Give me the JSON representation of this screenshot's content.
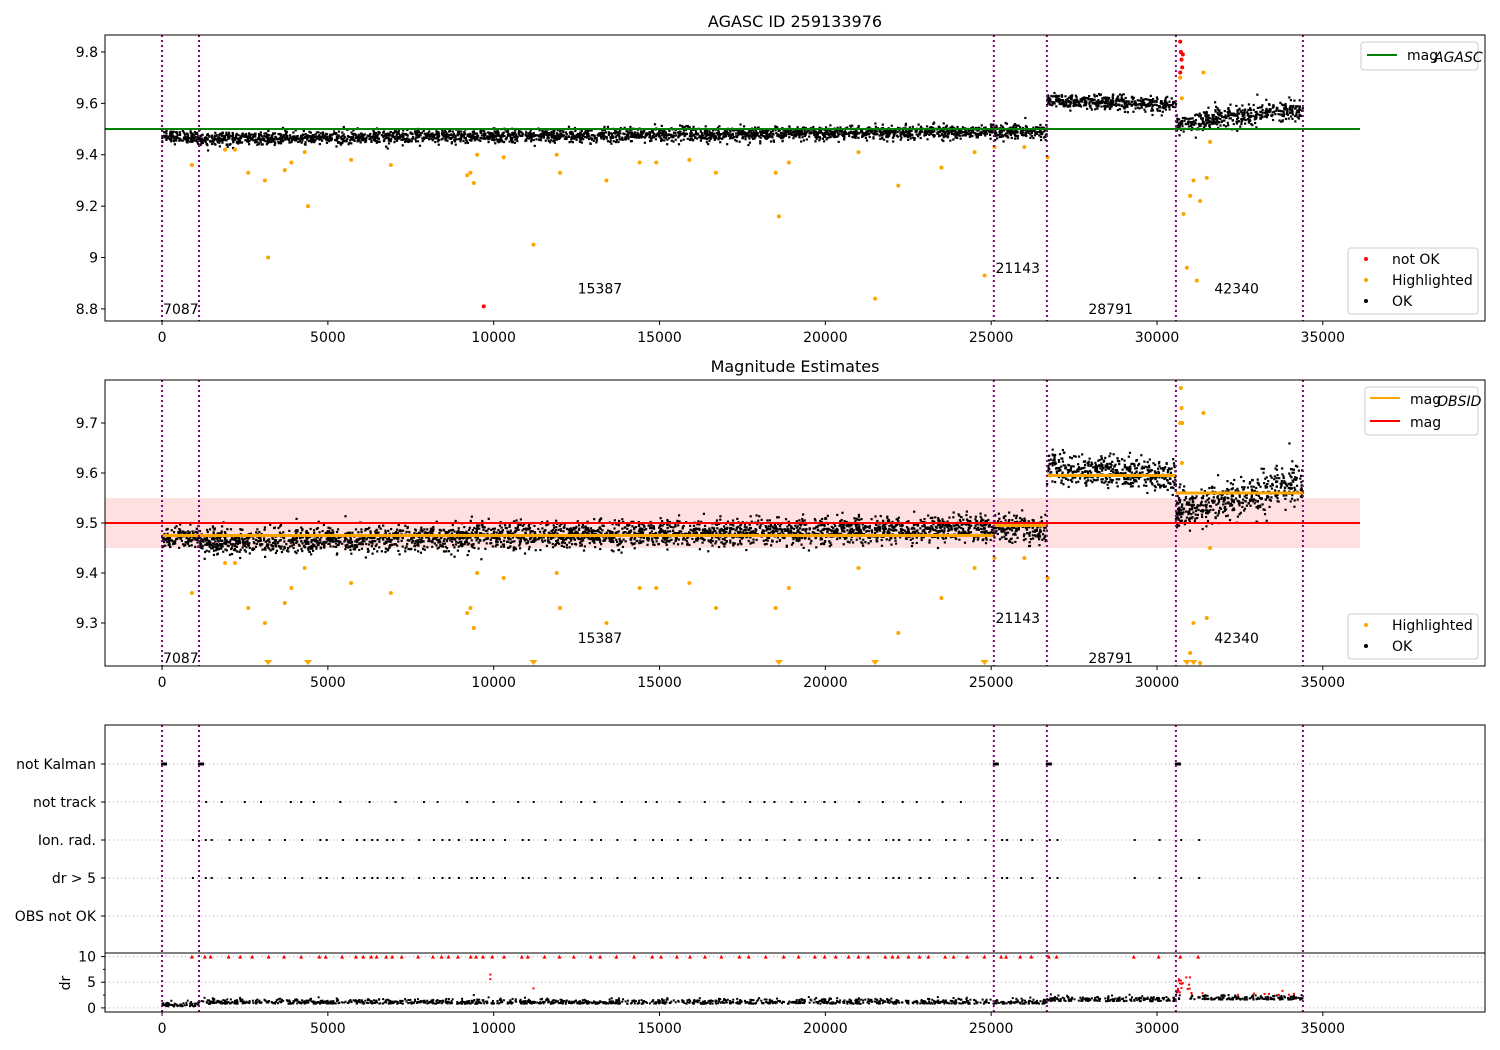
{
  "chart_data": [
    {
      "type": "scatter",
      "title": "AGASC ID 259133976",
      "xlim": [
        -1720,
        39890
      ],
      "ylim": [
        8.753,
        9.866
      ],
      "xticks": [
        0,
        5000,
        10000,
        15000,
        20000,
        25000,
        30000,
        35000
      ],
      "yticks": [
        8.8,
        9.0,
        9.2,
        9.4,
        9.6,
        9.8
      ],
      "hline": {
        "label": "mag_AGASC",
        "value": 9.5,
        "x_range": [
          -1720,
          36120
        ],
        "color": "#008000"
      },
      "legend_lines": [
        {
          "label": "mag",
          "sub": "AGASC",
          "color": "#008000"
        }
      ],
      "legend_points": [
        {
          "label": "not OK",
          "color": "#ff0000"
        },
        {
          "label": "Highlighted",
          "color": "#ffa500"
        },
        {
          "label": "OK",
          "color": "#000000"
        }
      ],
      "highlighted": [
        [
          900,
          9.36
        ],
        [
          1900,
          9.42
        ],
        [
          2200,
          9.42
        ],
        [
          2600,
          9.33
        ],
        [
          3100,
          9.3
        ],
        [
          3200,
          9.0
        ],
        [
          3700,
          9.34
        ],
        [
          3900,
          9.37
        ],
        [
          4400,
          9.2
        ],
        [
          4300,
          9.41
        ],
        [
          5700,
          9.38
        ],
        [
          6900,
          9.36
        ],
        [
          9200,
          9.32
        ],
        [
          9300,
          9.33
        ],
        [
          9400,
          9.29
        ],
        [
          9500,
          9.4
        ],
        [
          10300,
          9.39
        ],
        [
          11200,
          9.05
        ],
        [
          12000,
          9.33
        ],
        [
          11900,
          9.4
        ],
        [
          13400,
          9.3
        ],
        [
          14400,
          9.37
        ],
        [
          14900,
          9.37
        ],
        [
          15900,
          9.38
        ],
        [
          16700,
          9.33
        ],
        [
          18500,
          9.33
        ],
        [
          18600,
          9.16
        ],
        [
          18900,
          9.37
        ],
        [
          21000,
          9.41
        ],
        [
          21500,
          8.84
        ],
        [
          22200,
          9.28
        ],
        [
          23500,
          9.35
        ],
        [
          24500,
          9.41
        ],
        [
          24800,
          8.93
        ],
        [
          25100,
          9.43
        ],
        [
          26000,
          9.43
        ],
        [
          26700,
          9.39
        ],
        [
          30800,
          9.17
        ],
        [
          30900,
          8.96
        ],
        [
          31000,
          9.24
        ],
        [
          31100,
          9.3
        ],
        [
          31200,
          8.91
        ],
        [
          31300,
          9.22
        ],
        [
          31500,
          9.31
        ],
        [
          31600,
          9.45
        ],
        [
          31400,
          9.72
        ],
        [
          30700,
          9.7
        ],
        [
          30750,
          9.62
        ]
      ],
      "not_ok": [
        [
          9700,
          8.81
        ],
        [
          30700,
          9.84
        ],
        [
          30720,
          9.8
        ],
        [
          30740,
          9.77
        ],
        [
          30760,
          9.74
        ],
        [
          30700,
          9.72
        ],
        [
          30780,
          9.79
        ]
      ]
    },
    {
      "type": "scatter",
      "title": "Magnitude Estimates",
      "xlim": [
        -1720,
        39890
      ],
      "ylim": [
        9.214,
        9.786
      ],
      "xticks": [
        0,
        5000,
        10000,
        15000,
        20000,
        25000,
        30000,
        35000
      ],
      "yticks": [
        9.3,
        9.4,
        9.5,
        9.6,
        9.7
      ],
      "band": {
        "low": 9.45,
        "high": 9.55,
        "color": "#ffcccc"
      },
      "hline": {
        "label": "mag",
        "value": 9.5,
        "color": "#ff0000"
      },
      "obsid_mags": [
        {
          "x0": 0,
          "x1": 25080,
          "mag": 9.475
        },
        {
          "x0": 25080,
          "x1": 26680,
          "mag": 9.495
        },
        {
          "x0": 26680,
          "x1": 30570,
          "mag": 9.595
        },
        {
          "x0": 30570,
          "x1": 34400,
          "mag": 9.56
        }
      ],
      "legend_lines": [
        {
          "label": "mag",
          "sub": "OBSID",
          "color": "#ffa500"
        },
        {
          "label": "mag",
          "sub": "",
          "color": "#ff0000"
        }
      ],
      "legend_points": [
        {
          "label": "Highlighted",
          "color": "#ffa500"
        },
        {
          "label": "OK",
          "color": "#000000"
        }
      ],
      "below_range_x": [
        3200,
        4400,
        11200,
        18600,
        21500,
        24800,
        30900,
        31100
      ]
    },
    {
      "type": "scatter",
      "title": "",
      "xlim": [
        -1720,
        39890
      ],
      "xticks": [
        0,
        5000,
        10000,
        15000,
        20000,
        25000,
        30000,
        35000
      ],
      "flags": [
        "not Kalman",
        "not track",
        "Ion. rad.",
        "dr > 5",
        "OBS not OK"
      ],
      "dr_label": "dr",
      "dr_ylim": [
        -0.8,
        10.7
      ],
      "dr_yticks": [
        0,
        5,
        10
      ],
      "not_kalman_x": [
        0,
        1115,
        25080,
        26680,
        30570
      ]
    }
  ],
  "segments": [
    {
      "obsid": "7087",
      "x0": 0,
      "x1": 1115,
      "mag0": 9.47,
      "mag1": 9.47,
      "std": 0.012
    },
    {
      "obsid": "15387",
      "x0": 1115,
      "x1": 25080,
      "mag0": 9.462,
      "mag1": 9.49,
      "std": 0.013
    },
    {
      "obsid": "21143",
      "x0": 25080,
      "x1": 26680,
      "mag0": 9.49,
      "mag1": 9.49,
      "std": 0.015
    },
    {
      "obsid": "28791",
      "x0": 26680,
      "x1": 30570,
      "mag0": 9.61,
      "mag1": 9.595,
      "std": 0.014
    },
    {
      "obsid": "42340",
      "x0": 30570,
      "x1": 34400,
      "mag0": 9.52,
      "mag1": 9.58,
      "std": 0.02
    }
  ],
  "obsid_labels": [
    {
      "text": "7087",
      "x": 0,
      "top_y": 8.8,
      "mid_y": 9.23
    },
    {
      "text": "15387",
      "x": 12500,
      "top_y": 8.88,
      "mid_y": 9.27
    },
    {
      "text": "21143",
      "x": 25100,
      "top_y": 8.96,
      "mid_y": 9.31
    },
    {
      "text": "28791",
      "x": 27900,
      "top_y": 8.8,
      "mid_y": 9.23
    },
    {
      "text": "42340",
      "x": 31700,
      "top_y": 8.88,
      "mid_y": 9.27
    }
  ],
  "obsid_boundaries": [
    0,
    1115,
    25080,
    26680,
    30570,
    34400
  ]
}
